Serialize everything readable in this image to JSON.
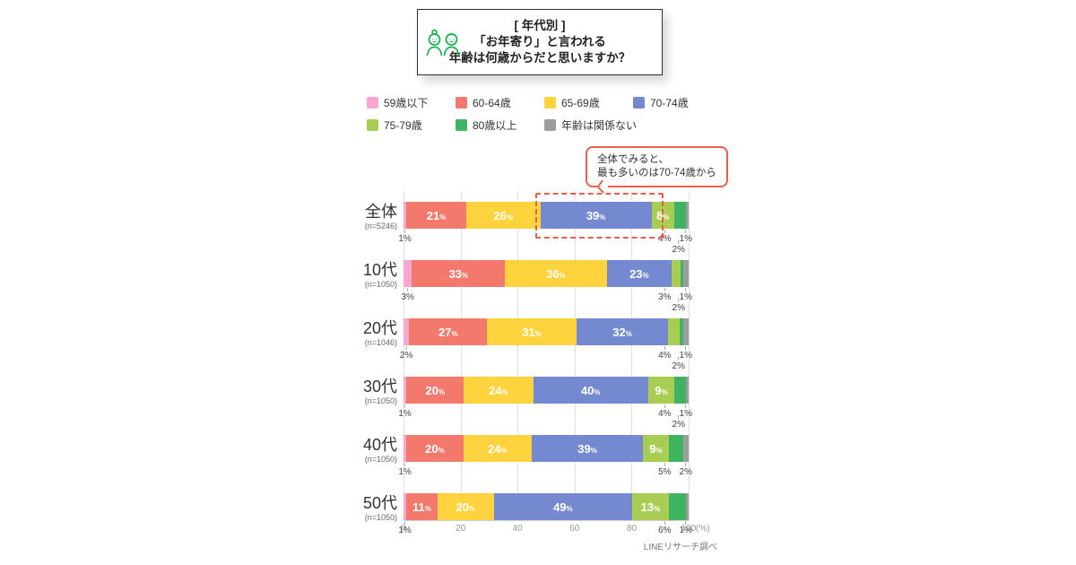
{
  "header": {
    "bracket_title": "[ 年代別 ]",
    "title_line1": "「お年寄り」と言われる",
    "title_line2": "年齢は何歳からだと思いますか？",
    "icon": "elderly-couple-icon",
    "icon_color": "#14B24C"
  },
  "legend": {
    "rows": [
      [
        {
          "label": "59歳以下",
          "color": "#F8A8CF"
        },
        {
          "label": "60-64歳",
          "color": "#F3796D"
        },
        {
          "label": "65-69歳",
          "color": "#FFD33E"
        },
        {
          "label": "70-74歳",
          "color": "#7489CF"
        }
      ],
      [
        {
          "label": "75-79歳",
          "color": "#A9CC52"
        },
        {
          "label": "80歳以上",
          "color": "#3EB362"
        },
        {
          "label": "年齢は関係ない",
          "color": "#9D9D9D"
        }
      ]
    ]
  },
  "annotation": {
    "line1": "全体でみると、",
    "line2": "最も多いのは70-74歳から",
    "border_color": "#E8604C",
    "highlight_target": "全体 70-74歳 segment"
  },
  "chart_data": {
    "type": "bar",
    "subtype": "horizontal-stacked-100pct",
    "title": "「お年寄り」と言われる年齢は何歳からだと思いますか？（年代別）",
    "categories": [
      "59歳以下",
      "60-64歳",
      "65-69歳",
      "70-74歳",
      "75-79歳",
      "80歳以上",
      "年齢は関係ない"
    ],
    "colors": [
      "#F8A8CF",
      "#F3796D",
      "#FFD33E",
      "#7489CF",
      "#A9CC52",
      "#3EB362",
      "#9D9D9D"
    ],
    "x_axis": {
      "min": 0,
      "max": 100,
      "ticks": [
        0,
        20,
        40,
        60,
        80,
        100
      ],
      "unit": "(%)"
    },
    "rows": [
      {
        "label": "全体",
        "n": "(n=5246)",
        "values": [
          1,
          21,
          26,
          39,
          8,
          4,
          1
        ],
        "inbar": [
          false,
          true,
          true,
          true,
          true,
          false,
          false
        ],
        "below_left": "1%",
        "below_right_l1": [
          "4%",
          "1%"
        ],
        "below_right_l2": [
          "2%"
        ]
      },
      {
        "label": "10代",
        "n": "(n=1050)",
        "values": [
          3,
          33,
          36,
          23,
          3,
          1,
          2
        ],
        "inbar": [
          false,
          true,
          true,
          true,
          false,
          false,
          false
        ],
        "below_left": "3%",
        "below_right_l1": [
          "3%",
          "1%"
        ],
        "below_right_l2": [
          "2%"
        ]
      },
      {
        "label": "20代",
        "n": "(n=1046)",
        "values": [
          2,
          27,
          31,
          32,
          4,
          1,
          2
        ],
        "inbar": [
          false,
          true,
          true,
          true,
          false,
          false,
          false
        ],
        "below_left": "2%",
        "below_right_l1": [
          "4%",
          "1%"
        ],
        "below_right_l2": [
          "2%"
        ]
      },
      {
        "label": "30代",
        "n": "(n=1050)",
        "values": [
          1,
          20,
          24,
          40,
          9,
          4,
          1
        ],
        "inbar": [
          false,
          true,
          true,
          true,
          true,
          false,
          false
        ],
        "below_left": "1%",
        "below_right_l1": [
          "4%",
          "1%"
        ],
        "below_right_l2": [
          "2%"
        ]
      },
      {
        "label": "40代",
        "n": "(n=1050)",
        "values": [
          1,
          20,
          24,
          39,
          9,
          5,
          2
        ],
        "inbar": [
          false,
          true,
          true,
          true,
          true,
          false,
          false
        ],
        "below_left": "1%",
        "below_right_l1": [
          "5%",
          "2%"
        ],
        "below_right_l2": []
      },
      {
        "label": "50代",
        "n": "(n=1050)",
        "values": [
          1,
          11,
          20,
          49,
          13,
          6,
          1
        ],
        "inbar": [
          false,
          true,
          true,
          true,
          true,
          false,
          false
        ],
        "below_left": "1%",
        "below_right_l1": [
          "6%",
          "1%"
        ],
        "below_right_l2": []
      }
    ]
  },
  "source": "LINEリサーチ調べ"
}
